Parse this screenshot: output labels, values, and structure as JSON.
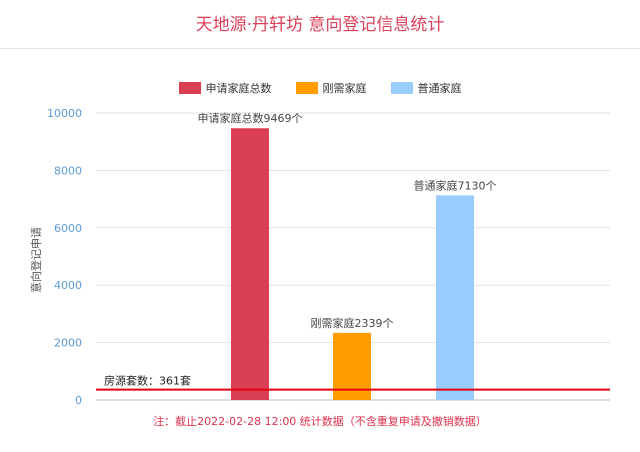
{
  "chart_data": {
    "type": "bar",
    "title": "天地源·丹轩坊 意向登记信息统计",
    "ylabel": "意向登记申请",
    "ylim": [
      0,
      10000
    ],
    "yticks": [
      0,
      2000,
      4000,
      6000,
      8000,
      10000
    ],
    "legend_position": "top-center",
    "grid": true,
    "series": [
      {
        "name": "申请家庭总数",
        "value": 9469,
        "color": "#d93e55",
        "label": "申请家庭总数9469个"
      },
      {
        "name": "刚需家庭",
        "value": 2339,
        "color": "#ff9c00",
        "label": "刚需家庭2339个"
      },
      {
        "name": "普通家庭",
        "value": 7130,
        "color": "#99ccff",
        "label": "普通家庭7130个"
      }
    ],
    "reference_line": {
      "value": 361,
      "label": "房源套数：361套",
      "color": "#e60012"
    },
    "note": "注：截止2022-02-28 12:00 统计数据（不含重复申请及撤销数据）"
  }
}
